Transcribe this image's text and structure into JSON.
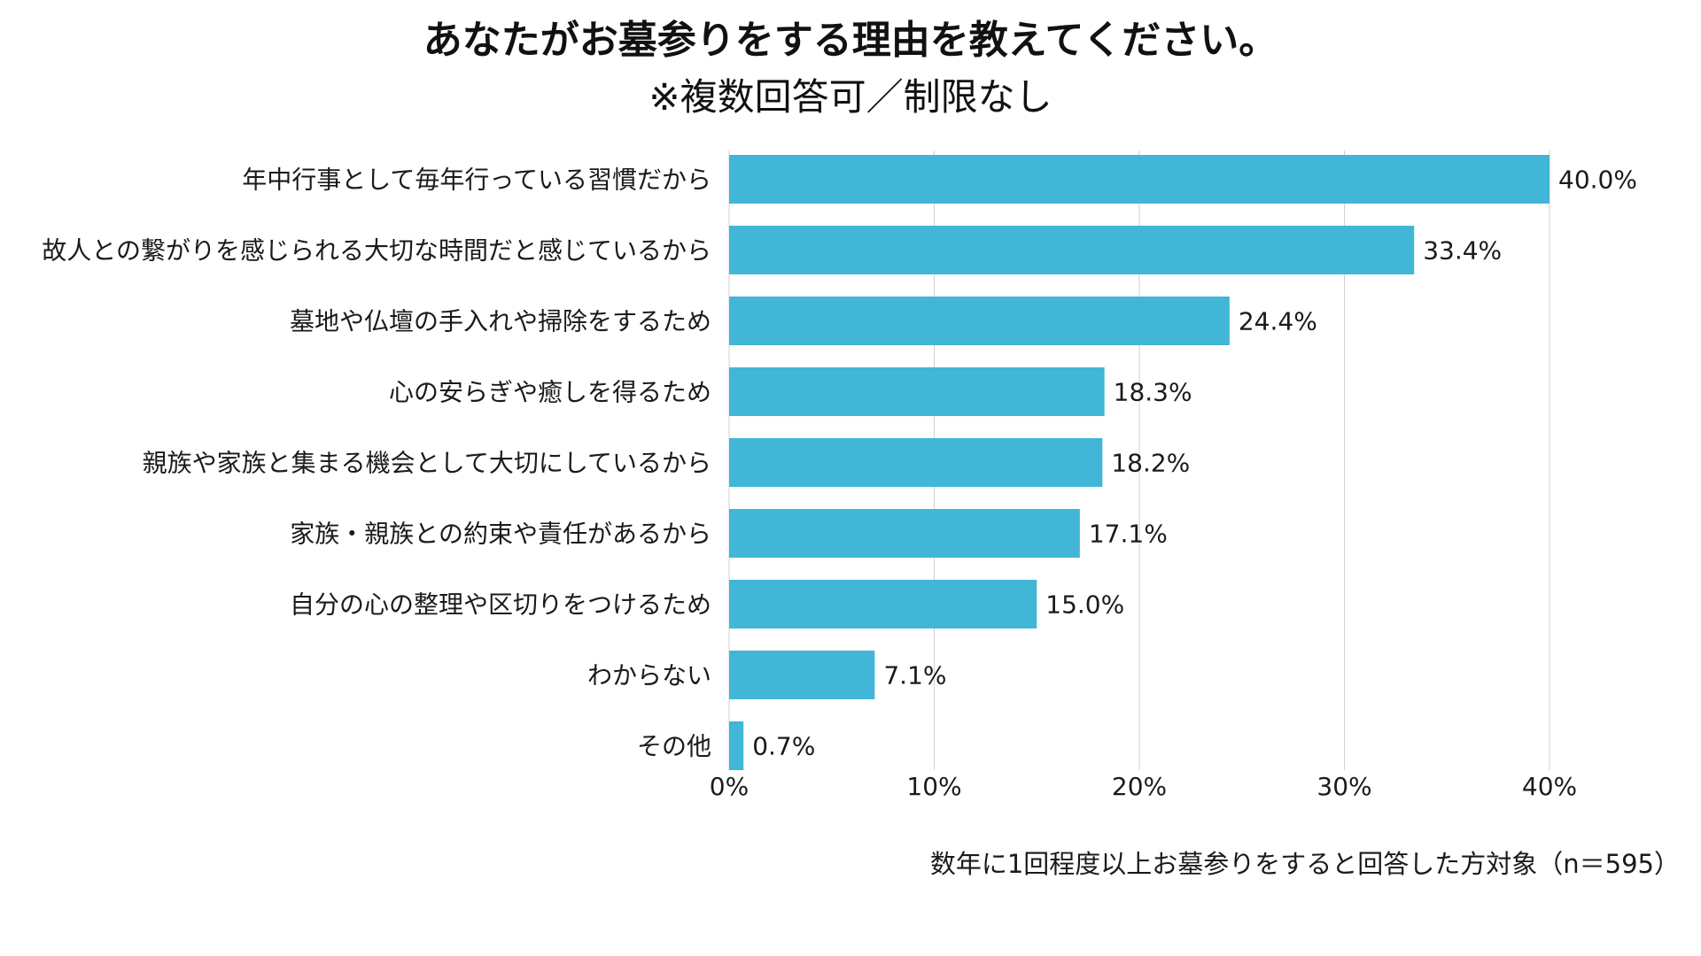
{
  "chart_data": {
    "type": "bar",
    "orientation": "horizontal",
    "title": "あなたがお墓参りをする理由を教えてください。",
    "subtitle": "※複数回答可／制限なし",
    "categories": [
      "年中行事として毎年行っている習慣だから",
      "故人との繋がりを感じられる大切な時間だと感じているから",
      "墓地や仏壇の手入れや掃除をするため",
      "心の安らぎや癒しを得るため",
      "親族や家族と集まる機会として大切にしているから",
      "家族・親族との約束や責任があるから",
      "自分の心の整理や区切りをつけるため",
      "わからない",
      "その他"
    ],
    "values": [
      40.0,
      33.4,
      24.4,
      18.3,
      18.2,
      17.1,
      15.0,
      7.1,
      0.7
    ],
    "value_labels": [
      "40.0%",
      "33.4%",
      "24.4%",
      "18.3%",
      "18.2%",
      "17.1%",
      "15.0%",
      "7.1%",
      "0.7%"
    ],
    "xlim": [
      0,
      40
    ],
    "xticks": [
      0,
      10,
      20,
      30,
      40
    ],
    "xtick_labels": [
      "0%",
      "10%",
      "20%",
      "30%",
      "40%"
    ],
    "xlabel": "",
    "ylabel": "",
    "grid": true,
    "legend": "none",
    "footnote": "数年に1回程度以上お墓参りをすると回答した方対象（n＝595）"
  },
  "colors": {
    "bar": "#41b6d6",
    "grid": "#d0d0d0",
    "text": "#1a1a1a"
  }
}
